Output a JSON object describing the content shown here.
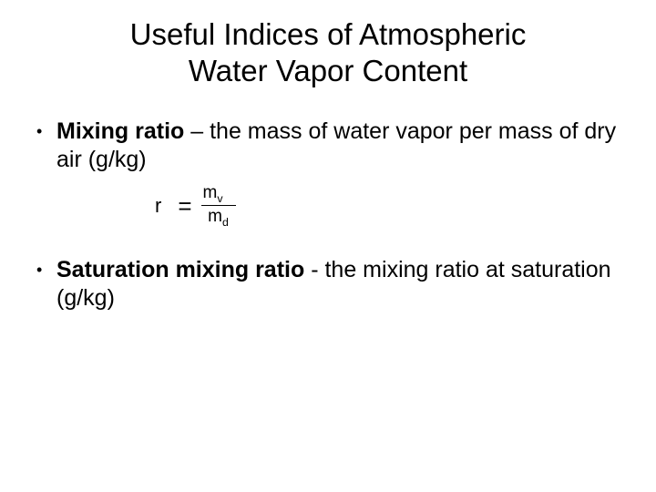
{
  "title_line1": "Useful Indices of Atmospheric",
  "title_line2": "Water Vapor Content",
  "bullets": [
    {
      "term": "Mixing ratio",
      "dash": " – ",
      "definition": "the mass of water vapor per mass of dry air (g/kg)"
    },
    {
      "term": "Saturation mixing ratio",
      "dash": " -  ",
      "definition": "the mixing ratio at saturation (g/kg)"
    }
  ],
  "equation": {
    "variable": "r",
    "equals": "=",
    "numerator_base": "m",
    "numerator_sub": "v",
    "denominator_base": "m",
    "denominator_sub": "d"
  },
  "style": {
    "background_color": "#ffffff",
    "text_color": "#000000",
    "title_fontsize": 33,
    "body_fontsize": 25,
    "equation_fontsize": 22,
    "fraction_fontsize": 19,
    "font_family": "Arial"
  }
}
